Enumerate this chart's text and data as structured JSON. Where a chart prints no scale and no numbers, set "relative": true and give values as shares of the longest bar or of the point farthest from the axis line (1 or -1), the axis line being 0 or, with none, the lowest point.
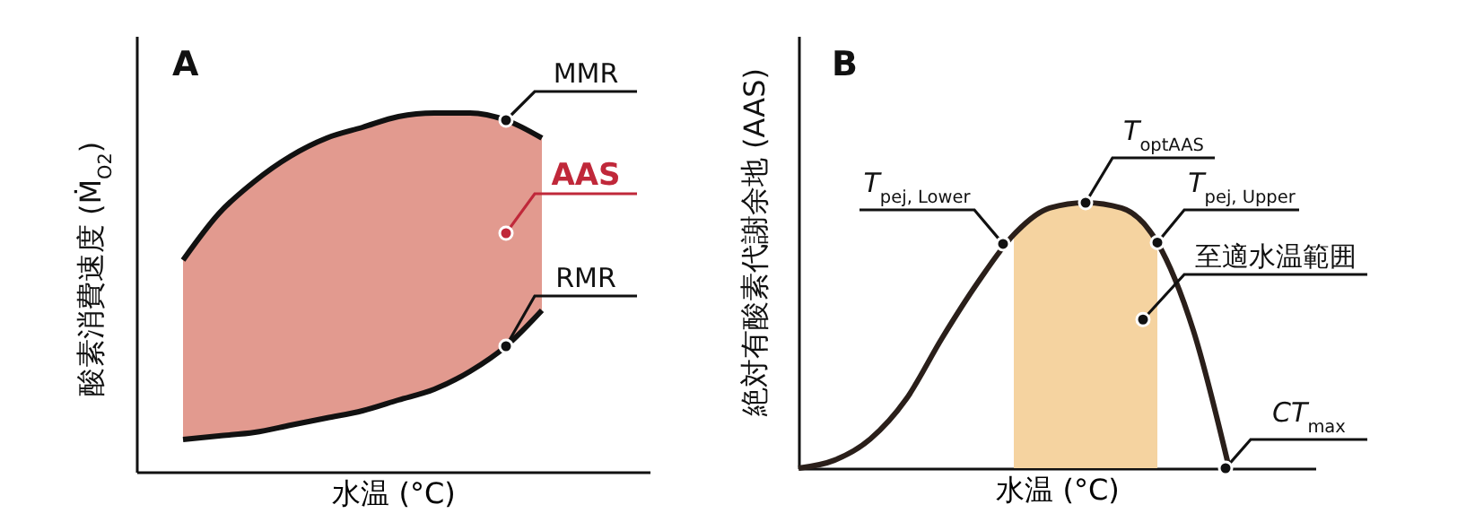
{
  "chart_data": [
    {
      "type": "line",
      "title": "A",
      "xlabel": "水温 (°C)",
      "ylabel": "酸素消費速度 (Ṁ$_{O2}$)",
      "relative": true,
      "categories": [
        null,
        null,
        null,
        null,
        null,
        null,
        null,
        null,
        null,
        null,
        null
      ],
      "series": [
        {
          "name": "MMR",
          "color": "#111111",
          "values": [
            0.59,
            0.72,
            0.81,
            0.88,
            0.93,
            0.96,
            0.99,
            1,
            1,
            0.98,
            0.93
          ],
          "lower": [
            0.09,
            0.1,
            0.11,
            0.13,
            0.15,
            0.17,
            0.2,
            0.23,
            0.28,
            0.35,
            0.45
          ],
          "upper": [
            0.59,
            0.72,
            0.81,
            0.88,
            0.93,
            0.96,
            0.99,
            1,
            1,
            0.98,
            0.93
          ]
        },
        {
          "name": "RMR",
          "color": "#111111",
          "values": [
            0.09,
            0.1,
            0.11,
            0.13,
            0.15,
            0.17,
            0.2,
            0.23,
            0.28,
            0.35,
            0.45
          ]
        }
      ],
      "annotations": [
        "AAS"
      ]
    },
    {
      "type": "line",
      "title": "B",
      "xlabel": "水温 (°C)",
      "ylabel": "絶対有酸素代謝余地 (AAS)",
      "relative": true,
      "categories": [
        null,
        null,
        null,
        null,
        null,
        null,
        null,
        null,
        null,
        null,
        null,
        null,
        null
      ],
      "series": [
        {
          "type": "area",
          "color": "#f5d3a0",
          "values": [
            null,
            null,
            null,
            null,
            null,
            null,
            0.88,
            0.98,
            1,
            0.98,
            0.85,
            null,
            null
          ]
        },
        {
          "color": "#2a1f1a",
          "values": [
            0,
            0.03,
            0.11,
            0.26,
            0.49,
            0.7,
            0.88,
            0.98,
            1,
            0.98,
            0.85,
            0.52,
            0
          ]
        }
      ],
      "annotations": [
        "T$_{pej, Lower}$",
        "T$_{optAAS}$",
        "T$_{pej, Upper}$",
        "至適水温範囲",
        "CT$_{max}$"
      ]
    }
  ]
}
